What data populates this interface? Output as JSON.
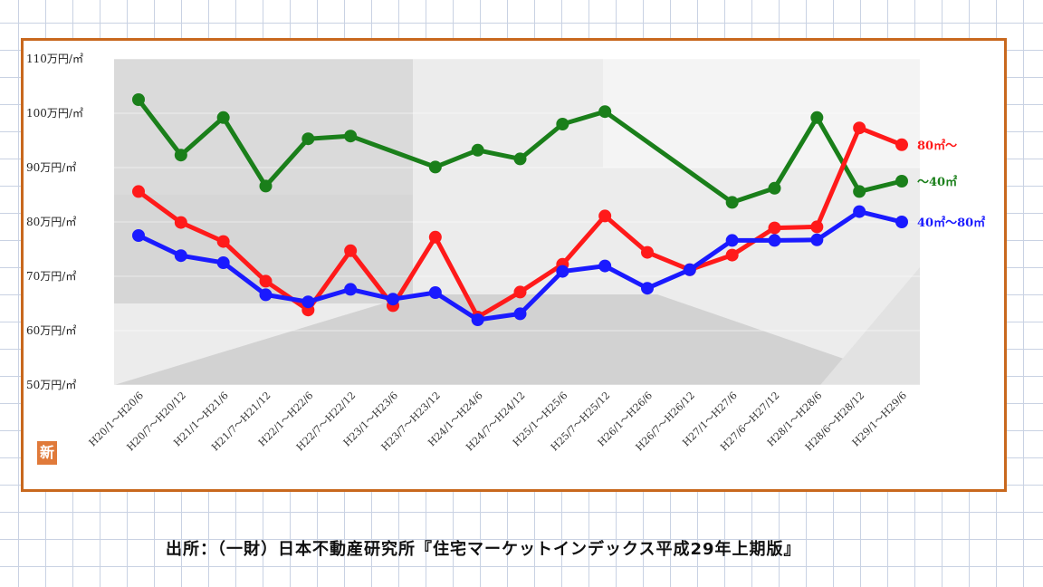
{
  "chart_data": {
    "type": "line",
    "categories": [
      "H20/1～H20/6",
      "H20/7～H20/12",
      "H21/1～H21/6",
      "H21/7～H21/12",
      "H22/1～H22/6",
      "H22/7～H22/12",
      "H23/1～H23/6",
      "H23/7～H23/12",
      "H24/1～H24/6",
      "H24/7～H24/12",
      "H25/1～H25/6",
      "H25/7～H25/12",
      "H26/1～H26/6",
      "H26/7～H26/12",
      "H27/1～H27/6",
      "H27/6～H27/12",
      "H28/1～H28/6",
      "H28/6～H28/12",
      "H29/1～H29/6"
    ],
    "y_tick_labels": [
      "50万円/㎡",
      "60万円/㎡",
      "70万円/㎡",
      "80万円/㎡",
      "90万円/㎡",
      "100万円/㎡",
      "110万円/㎡"
    ],
    "ylim": [
      50,
      110
    ],
    "series": [
      {
        "name": "～40㎡",
        "color": "#1a7f1a",
        "values": [
          102.5,
          92.3,
          99.2,
          86.6,
          95.3,
          95.8,
          null,
          90.1,
          93.2,
          91.6,
          98.0,
          100.3,
          null,
          null,
          83.6,
          86.2,
          99.2,
          85.6,
          87.5
        ]
      },
      {
        "name": "80㎡～",
        "color": "#ff1a1a",
        "values": [
          85.6,
          79.9,
          76.4,
          69.1,
          63.8,
          74.7,
          64.6,
          77.2,
          62.5,
          67.1,
          72.2,
          81.1,
          74.4,
          71.2,
          73.9,
          78.9,
          79.1,
          97.3,
          94.2
        ]
      },
      {
        "name": "40㎡～80㎡",
        "color": "#1a1aff",
        "values": [
          77.5,
          73.8,
          72.5,
          66.6,
          65.3,
          67.6,
          65.8,
          67.0,
          62.0,
          63.1,
          70.9,
          71.9,
          67.8,
          71.2,
          76.6,
          76.6,
          76.7,
          81.9,
          80.0
        ]
      }
    ]
  },
  "logo_text": "新",
  "source_note": "出所：（一財）日本不動産研究所『住宅マーケットインデックス平成29年上期版』"
}
